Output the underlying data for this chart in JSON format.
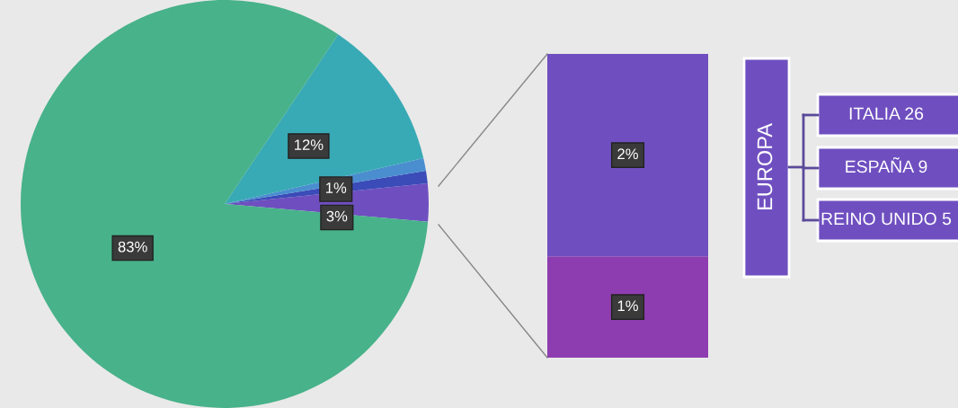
{
  "chart_data": [
    {
      "type": "pie",
      "categories": [
        null,
        null,
        null,
        null,
        null
      ],
      "values": [
        3,
        1,
        1,
        12,
        83
      ],
      "colors": [
        "#6f4fc0",
        "#3b4bb8",
        "#4a8ed0",
        "#38aab5",
        "#48b28a"
      ],
      "value_labels": [
        "3%",
        "1%",
        null,
        "12%",
        "83%"
      ]
    },
    {
      "type": "bar",
      "stacked": true,
      "categories": [
        null
      ],
      "series": [
        {
          "color": "#8e3db0",
          "values": [
            1
          ],
          "value_labels": [
            "1%"
          ]
        },
        {
          "color": "#6f4fc0",
          "values": [
            2
          ],
          "value_labels": [
            "2%"
          ]
        }
      ]
    },
    {
      "type": "other",
      "title": "EUROPA",
      "color": "#6f4fc0",
      "annotations": [
        "ITALIA 26",
        "ESPAÑA 9",
        "REINO UNIDO 5"
      ]
    }
  ]
}
